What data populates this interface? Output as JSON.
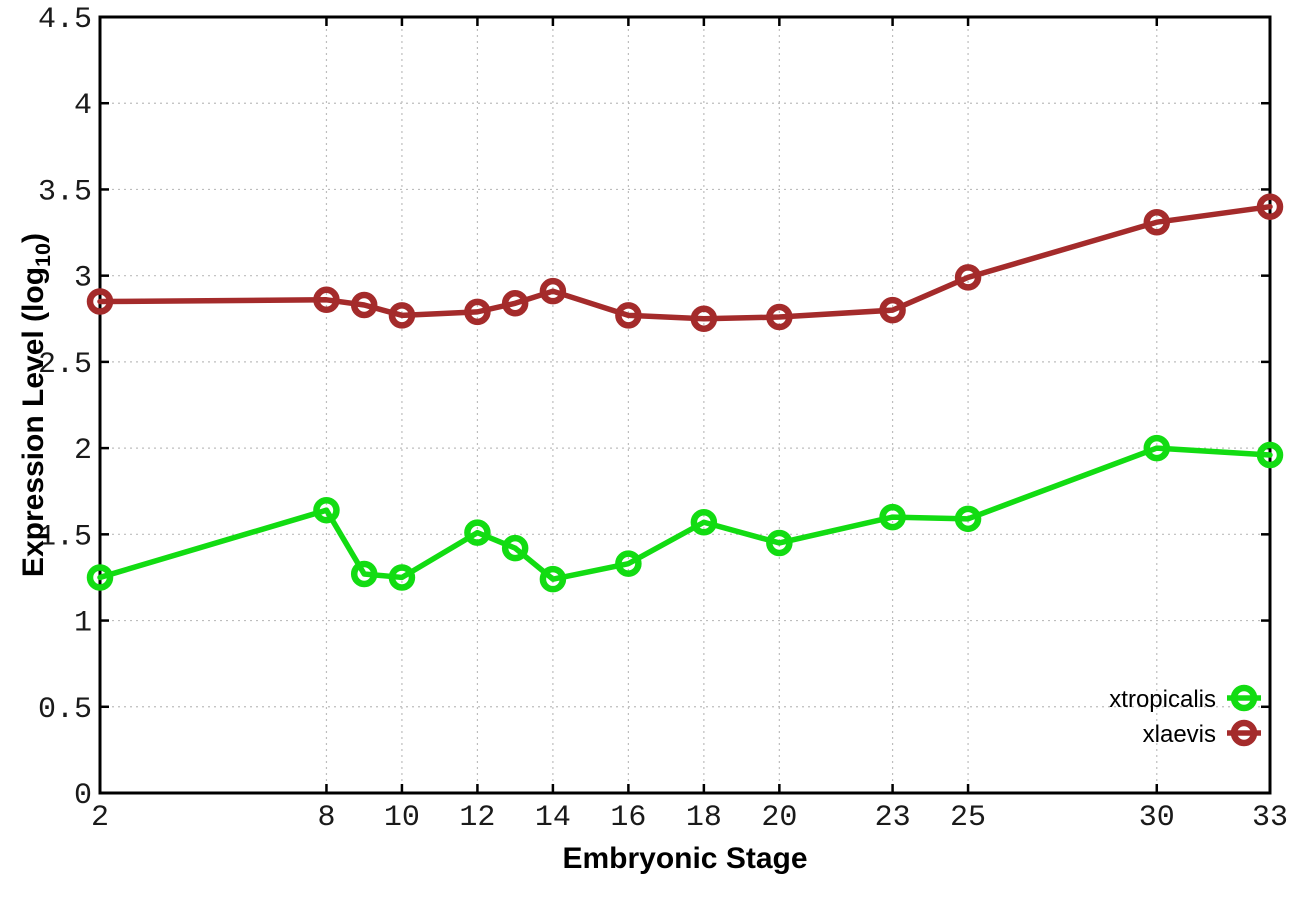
{
  "chart_data": {
    "type": "line",
    "title": "",
    "xlabel": "Embryonic Stage",
    "ylabel": "Expression Level (log10)",
    "ylabel_parts": {
      "main": "Expression Level (log",
      "sub": "10",
      "close": ")"
    },
    "x": [
      2,
      8,
      9,
      10,
      12,
      13,
      14,
      16,
      18,
      20,
      23,
      25,
      30,
      33
    ],
    "series": [
      {
        "name": "xtropicalis",
        "color": "#12dc12",
        "marker": "open-circle",
        "values": [
          1.25,
          1.64,
          1.27,
          1.25,
          1.51,
          1.42,
          1.24,
          1.33,
          1.57,
          1.45,
          1.6,
          1.59,
          2.0,
          1.96
        ]
      },
      {
        "name": "xlaevis",
        "color": "#a42b2b",
        "marker": "open-circle",
        "values": [
          2.85,
          2.86,
          2.83,
          2.77,
          2.79,
          2.84,
          2.91,
          2.77,
          2.75,
          2.76,
          2.8,
          2.99,
          3.31,
          3.4
        ]
      }
    ],
    "xticks": [
      {
        "v": 2,
        "label": "2"
      },
      {
        "v": 8,
        "label": "8"
      },
      {
        "v": 10,
        "label": "10"
      },
      {
        "v": 12,
        "label": "12"
      },
      {
        "v": 14,
        "label": "14"
      },
      {
        "v": 16,
        "label": "16"
      },
      {
        "v": 18,
        "label": "18"
      },
      {
        "v": 20,
        "label": "20"
      },
      {
        "v": 23,
        "label": "23"
      },
      {
        "v": 25,
        "label": "25"
      },
      {
        "v": 30,
        "label": "30"
      },
      {
        "v": 33,
        "label": "33"
      }
    ],
    "yticks": [
      {
        "v": 0,
        "label": "0"
      },
      {
        "v": 0.5,
        "label": "0.5"
      },
      {
        "v": 1,
        "label": "1"
      },
      {
        "v": 1.5,
        "label": "1.5"
      },
      {
        "v": 2,
        "label": "2"
      },
      {
        "v": 2.5,
        "label": "2.5"
      },
      {
        "v": 3,
        "label": "3"
      },
      {
        "v": 3.5,
        "label": "3.5"
      },
      {
        "v": 4,
        "label": "4"
      },
      {
        "v": 4.5,
        "label": "4.5"
      }
    ],
    "xlim": [
      2,
      33
    ],
    "ylim": [
      0,
      4.5
    ],
    "grid": true,
    "legend_position": "bottom-right",
    "colors": {
      "background": "#ffffff",
      "border": "#000000",
      "grid": "#bdbdbd",
      "tick_text": "#1a1a1a",
      "legend_text": "#000000"
    }
  }
}
